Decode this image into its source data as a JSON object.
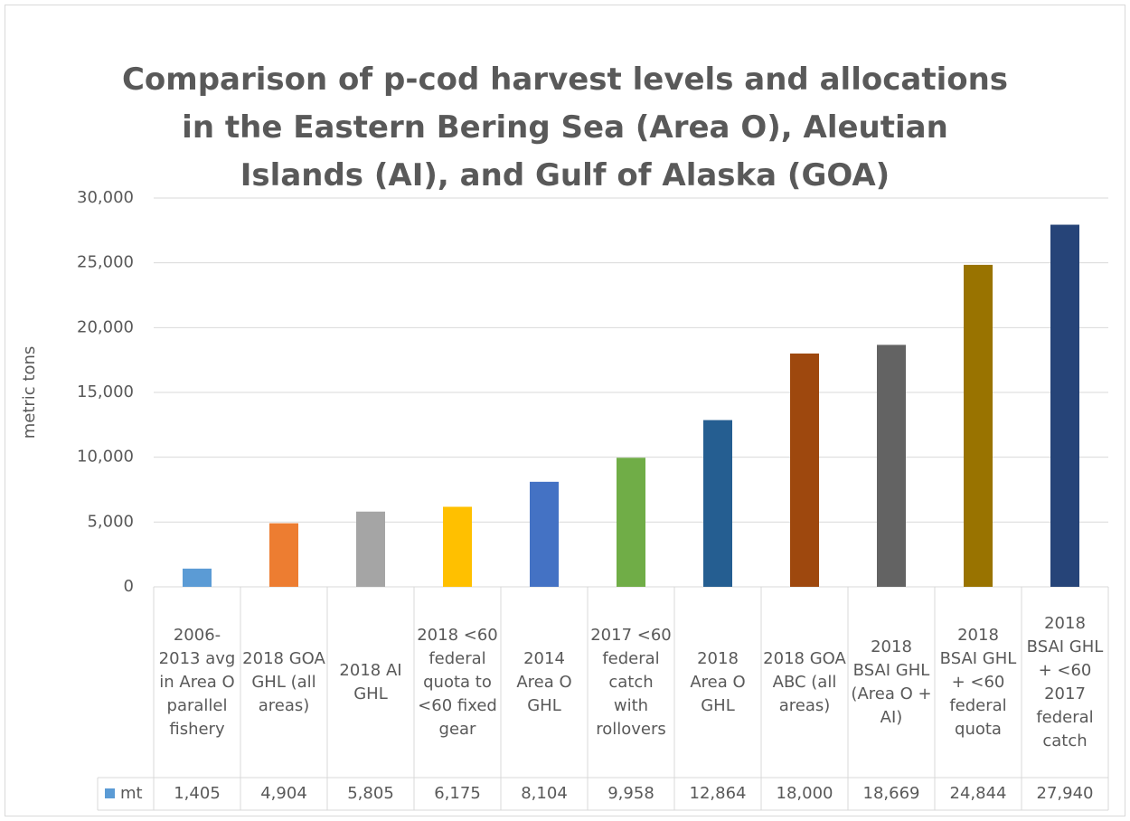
{
  "chart_data": {
    "type": "bar",
    "title": "Comparison of p-cod harvest levels and allocations in the Eastern Bering Sea (Area O), Aleutian Islands (AI), and Gulf of Alaska (GOA)",
    "y_label": "metric tons",
    "categories": [
      "2006-2013 avg in Area O parallel fishery",
      "2018 GOA GHL (all areas)",
      "2018 AI GHL",
      "2018 <60 federal quota to <60 fixed gear",
      "2014 Area O GHL",
      "2017 <60 federal catch with rollovers",
      "2018 Area O GHL",
      "2018 GOA ABC (all areas)",
      "2018 BSAI GHL (Area O + AI)",
      "2018 BSAI GHL + <60 federal quota",
      "2018 BSAI GHL + <60 2017 federal catch"
    ],
    "series": [
      {
        "name": "mt",
        "color": "#5b9bd5",
        "colors": [
          "#5b9bd5",
          "#ed7d31",
          "#a5a5a5",
          "#ffc000",
          "#4472c4",
          "#70ad47",
          "#255e91",
          "#9e480e",
          "#636363",
          "#997300",
          "#264478"
        ],
        "values": [
          1405,
          4904,
          5805,
          6175,
          8104,
          9958,
          12864,
          18000,
          18669,
          24844,
          27940
        ],
        "value_labels": [
          "1,405",
          "4,904",
          "5,805",
          "6,175",
          "8,104",
          "9,958",
          "12,864",
          "18,000",
          "18,669",
          "24,844",
          "27,940"
        ]
      }
    ],
    "ylim": [
      0,
      30000
    ],
    "yticks": [
      0,
      {
        "value": 5000,
        "label": "5,000"
      },
      {
        "value": 10000,
        "label": "10,000"
      },
      {
        "value": 15000,
        "label": "15,000"
      },
      {
        "value": 20000,
        "label": "20,000"
      },
      {
        "value": 25000,
        "label": "25,000"
      },
      {
        "value": 30000,
        "label": "30,000"
      }
    ],
    "grid": true
  }
}
